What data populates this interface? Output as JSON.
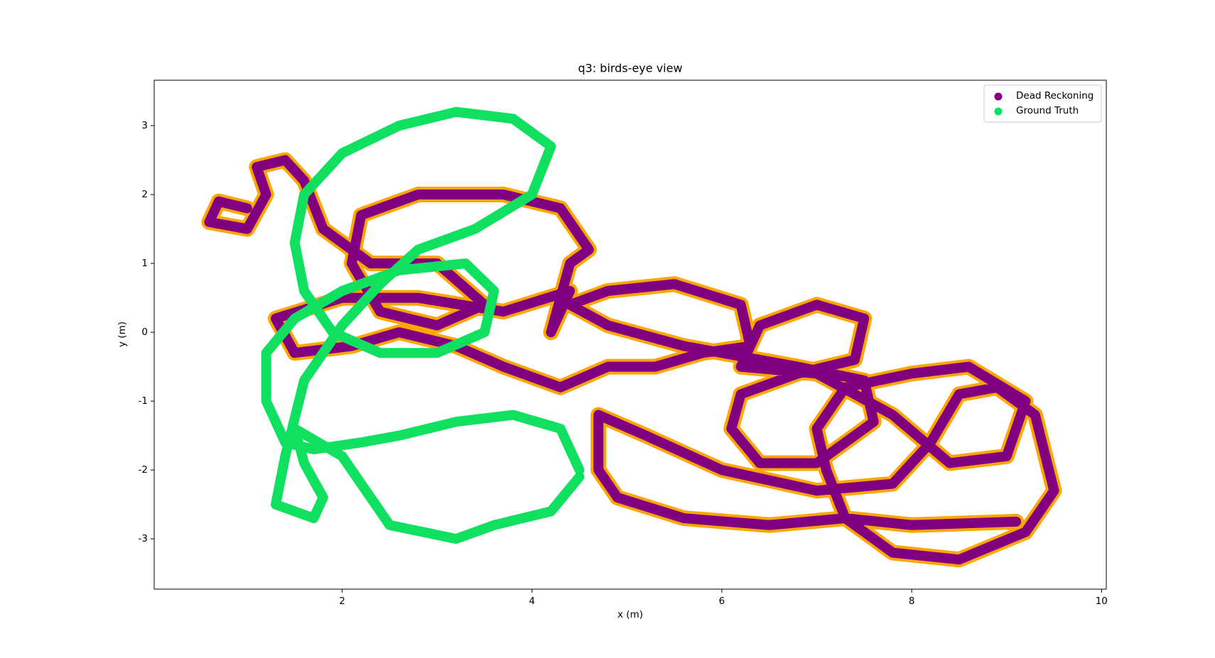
{
  "chart_data": {
    "type": "scatter",
    "title": "q3: birds-eye view",
    "x_label": "x (m)",
    "y_label": "y (m)",
    "xlim": [
      0.02,
      10.05
    ],
    "ylim": [
      -3.73,
      3.66
    ],
    "xticks": [
      2,
      4,
      6,
      8,
      10
    ],
    "yticks": [
      -3,
      -2,
      -1,
      0,
      1,
      2,
      3
    ],
    "grid": false,
    "legend": "upper right",
    "series": [
      {
        "name": "Dead Reckoning",
        "color": "purple",
        "halo_color": "orange",
        "x": [
          9.1,
          8.0,
          7.3,
          6.5,
          5.6,
          4.9,
          4.7,
          4.7,
          5.2,
          6.0,
          7.0,
          7.8,
          8.2,
          8.5,
          8.9,
          9.3,
          9.5,
          9.2,
          8.5,
          7.8,
          7.3,
          7.1,
          7.0,
          7.3,
          8.0,
          8.6,
          9.2,
          9.0,
          8.4,
          7.8,
          7.0,
          6.2,
          6.4,
          7.0,
          7.5,
          7.4,
          6.8,
          6.2,
          6.1,
          6.4,
          7.0,
          7.6,
          7.5,
          6.8,
          5.6,
          4.8,
          4.4,
          4.8,
          5.5,
          6.2,
          6.3,
          5.8,
          5.3,
          4.8,
          4.3,
          3.7,
          3.2,
          2.6,
          2.1,
          1.5,
          1.3,
          2.0,
          2.8,
          3.7,
          4.4,
          4.2,
          4.4,
          4.6,
          4.3,
          3.7,
          2.8,
          2.2,
          2.1,
          2.4,
          3.0,
          3.5,
          3.0,
          2.3,
          1.8,
          1.6,
          1.4,
          1.1,
          1.2,
          1.0,
          0.6,
          0.7,
          1.0
        ],
        "values": [
          -2.75,
          -2.8,
          -2.7,
          -2.8,
          -2.7,
          -2.4,
          -2.0,
          -1.2,
          -1.5,
          -2.0,
          -2.3,
          -2.2,
          -1.6,
          -0.9,
          -0.8,
          -1.2,
          -2.3,
          -2.9,
          -3.3,
          -3.2,
          -2.7,
          -2.0,
          -1.4,
          -0.8,
          -0.6,
          -0.5,
          -1.0,
          -1.8,
          -1.9,
          -1.2,
          -0.6,
          -0.5,
          0.1,
          0.4,
          0.2,
          -0.4,
          -0.6,
          -0.9,
          -1.4,
          -1.9,
          -1.9,
          -1.3,
          -0.7,
          -0.5,
          -0.2,
          0.1,
          0.4,
          0.6,
          0.7,
          0.4,
          -0.2,
          -0.3,
          -0.5,
          -0.5,
          -0.8,
          -0.5,
          -0.2,
          0.0,
          -0.2,
          -0.3,
          0.2,
          0.5,
          0.5,
          0.3,
          0.6,
          0.0,
          1.0,
          1.2,
          1.8,
          2.0,
          2.0,
          1.7,
          1.0,
          0.3,
          0.1,
          0.4,
          1.0,
          1.0,
          1.5,
          2.2,
          2.5,
          2.4,
          2.0,
          1.5,
          1.6,
          1.9,
          1.8
        ]
      },
      {
        "name": "Ground Truth",
        "color": "#10e060",
        "x": [
          4.5,
          4.3,
          3.8,
          3.2,
          2.6,
          2.2,
          1.7,
          1.4,
          1.2,
          1.2,
          1.5,
          2.0,
          2.6,
          3.3,
          3.6,
          3.5,
          3.0,
          2.4,
          1.9,
          1.6,
          1.5,
          1.6,
          2.0,
          2.6,
          3.2,
          3.8,
          4.2,
          4.0,
          3.4,
          2.8,
          2.4,
          2.0,
          1.6,
          1.4,
          1.3,
          1.7,
          1.8,
          1.6,
          1.5,
          2.0,
          2.5,
          3.2,
          3.6,
          4.2,
          4.5
        ],
        "values": [
          -2.0,
          -1.4,
          -1.2,
          -1.3,
          -1.5,
          -1.6,
          -1.7,
          -1.6,
          -1.0,
          -0.3,
          0.2,
          0.6,
          0.9,
          1.0,
          0.6,
          0.0,
          -0.3,
          -0.3,
          0.0,
          0.6,
          1.3,
          2.0,
          2.6,
          3.0,
          3.2,
          3.1,
          2.7,
          2.0,
          1.5,
          1.2,
          0.7,
          0.1,
          -0.7,
          -1.8,
          -2.5,
          -2.7,
          -2.4,
          -1.9,
          -1.4,
          -1.8,
          -2.8,
          -3.0,
          -2.8,
          -2.6,
          -2.1
        ]
      }
    ]
  }
}
